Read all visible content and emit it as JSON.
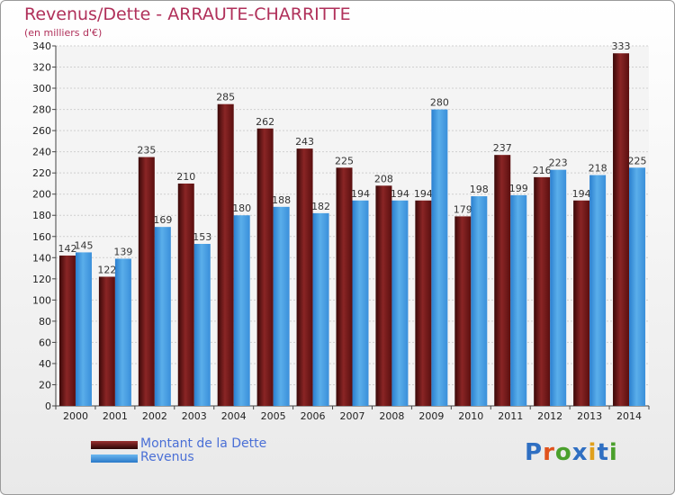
{
  "chart_data": {
    "type": "bar",
    "title": "Revenus/Dette - ARRAUTE-CHARRITTE",
    "subtitle": "(en milliers d'€)",
    "categories": [
      "2000",
      "2001",
      "2002",
      "2003",
      "2004",
      "2005",
      "2006",
      "2007",
      "2008",
      "2009",
      "2010",
      "2011",
      "2012",
      "2013",
      "2014"
    ],
    "series": [
      {
        "name": "Montant de la Dette",
        "color": "#7a1a1a",
        "values": [
          142,
          122,
          235,
          210,
          285,
          262,
          243,
          225,
          208,
          194,
          179,
          237,
          216,
          194,
          333
        ]
      },
      {
        "name": "Revenus",
        "color": "#3d8fd8",
        "values": [
          145,
          139,
          169,
          153,
          180,
          188,
          182,
          194,
          194,
          280,
          198,
          199,
          223,
          218,
          225
        ]
      }
    ],
    "ylim": [
      0,
      340
    ],
    "yticks": [
      0,
      20,
      40,
      60,
      80,
      100,
      120,
      140,
      160,
      180,
      200,
      220,
      240,
      260,
      280,
      300,
      320,
      340
    ],
    "grid": true,
    "legend_position": "bottom-left"
  },
  "logo": {
    "letters": [
      "P",
      "r",
      "o",
      "x",
      "i",
      "t",
      "i"
    ],
    "colors": [
      "#2f6fc2",
      "#e0521c",
      "#4aa02c",
      "#2f6fc2",
      "#e0a01c",
      "#2f6fc2",
      "#4aa02c"
    ]
  }
}
